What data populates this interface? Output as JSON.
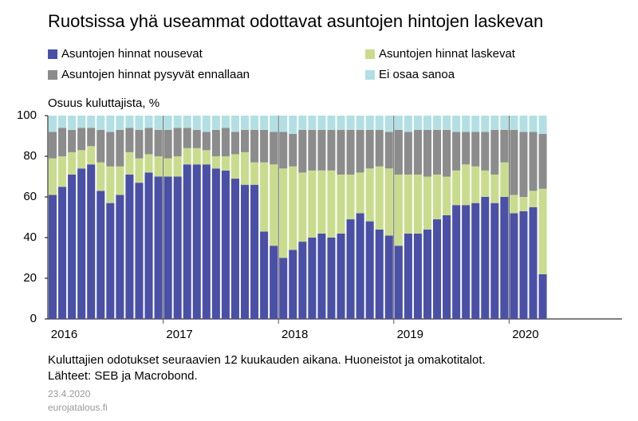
{
  "chart_data": {
    "type": "stacked_bar",
    "title": "Ruotsissa yhä useammat odottavat asuntojen hintojen laskevan",
    "y_label": "Osuus kuluttajista, %",
    "footnote": "Kuluttajien odotukset seuraavien 12 kuukauden aikana. Huoneistot ja omakotitalot.",
    "sources": "Lähteet: SEB ja Macrobond.",
    "date": "23.4.2020",
    "site": "eurojatalous.fi",
    "legend": "top",
    "ylim": [
      0,
      100
    ],
    "yticks": [
      0,
      20,
      40,
      60,
      80,
      100
    ],
    "categories": [
      "2016",
      null,
      null,
      null,
      null,
      null,
      null,
      null,
      null,
      null,
      null,
      null,
      "2017",
      null,
      null,
      null,
      null,
      null,
      null,
      null,
      null,
      null,
      null,
      null,
      "2018",
      null,
      null,
      null,
      null,
      null,
      null,
      null,
      null,
      null,
      null,
      null,
      "2019",
      null,
      null,
      null,
      null,
      null,
      null,
      null,
      null,
      null,
      null,
      null,
      "2020",
      null,
      null,
      null
    ],
    "series": [
      {
        "name": "Asuntojen hinnat nousevat",
        "color": "#4a50a6",
        "values": [
          61,
          65,
          71,
          74,
          76,
          63,
          57,
          61,
          71,
          67,
          72,
          70,
          70,
          70,
          76,
          76,
          76,
          74,
          73,
          69,
          66,
          66,
          43,
          36,
          30,
          34,
          38,
          40,
          42,
          40,
          42,
          49,
          52,
          48,
          44,
          41,
          36,
          42,
          42,
          44,
          49,
          51,
          56,
          56,
          57,
          60,
          57,
          60,
          52,
          53,
          55,
          22
        ]
      },
      {
        "name": "Asuntojen hinnat laskevat",
        "color": "#c9dc8e",
        "values": [
          18,
          15,
          11,
          9,
          9,
          14,
          18,
          14,
          11,
          12,
          9,
          10,
          9,
          10,
          8,
          8,
          7,
          6,
          7,
          12,
          16,
          11,
          34,
          40,
          44,
          41,
          34,
          33,
          31,
          33,
          29,
          22,
          20,
          26,
          31,
          33,
          35,
          29,
          29,
          26,
          22,
          19,
          17,
          20,
          18,
          13,
          14,
          17,
          9,
          7,
          8,
          42
        ]
      },
      {
        "name": "Asuntojen hinnat pysyvät ennallaan",
        "color": "#8c8c8c",
        "values": [
          13,
          14,
          11,
          11,
          9,
          16,
          17,
          18,
          12,
          14,
          13,
          13,
          14,
          14,
          10,
          9,
          9,
          13,
          14,
          11,
          11,
          16,
          16,
          16,
          18,
          16,
          21,
          20,
          20,
          20,
          22,
          22,
          21,
          19,
          18,
          18,
          22,
          21,
          22,
          23,
          22,
          23,
          19,
          16,
          17,
          19,
          22,
          16,
          32,
          32,
          29,
          27
        ]
      },
      {
        "name": "Ei osaa sanoa",
        "color": "#b2dfe4",
        "values": [
          8,
          6,
          7,
          6,
          6,
          7,
          8,
          7,
          6,
          7,
          6,
          7,
          7,
          6,
          6,
          7,
          8,
          7,
          6,
          8,
          7,
          7,
          7,
          8,
          8,
          9,
          7,
          7,
          7,
          7,
          7,
          7,
          7,
          7,
          7,
          8,
          7,
          8,
          7,
          7,
          7,
          7,
          8,
          8,
          8,
          8,
          7,
          7,
          7,
          8,
          8,
          9
        ]
      }
    ]
  }
}
